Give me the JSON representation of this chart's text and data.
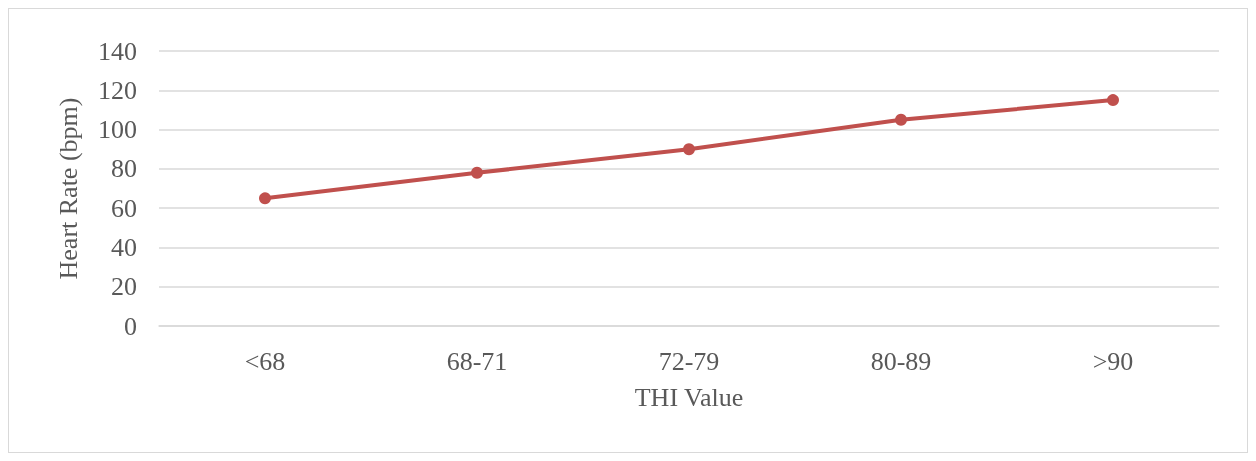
{
  "chart_data": {
    "type": "line",
    "xlabel": "THI Value",
    "ylabel": "Heart Rate (bpm)",
    "categories": [
      "<68",
      "68-71",
      "72-79",
      "80-89",
      ">90"
    ],
    "series": [
      {
        "color": "#c0504d",
        "values": [
          65,
          78,
          90,
          105,
          115
        ]
      }
    ],
    "ylim": [
      0,
      140
    ],
    "yticks": [
      0,
      20,
      40,
      60,
      80,
      100,
      120,
      140
    ],
    "grid": "y",
    "marker": "circle",
    "line_style": "solid"
  }
}
